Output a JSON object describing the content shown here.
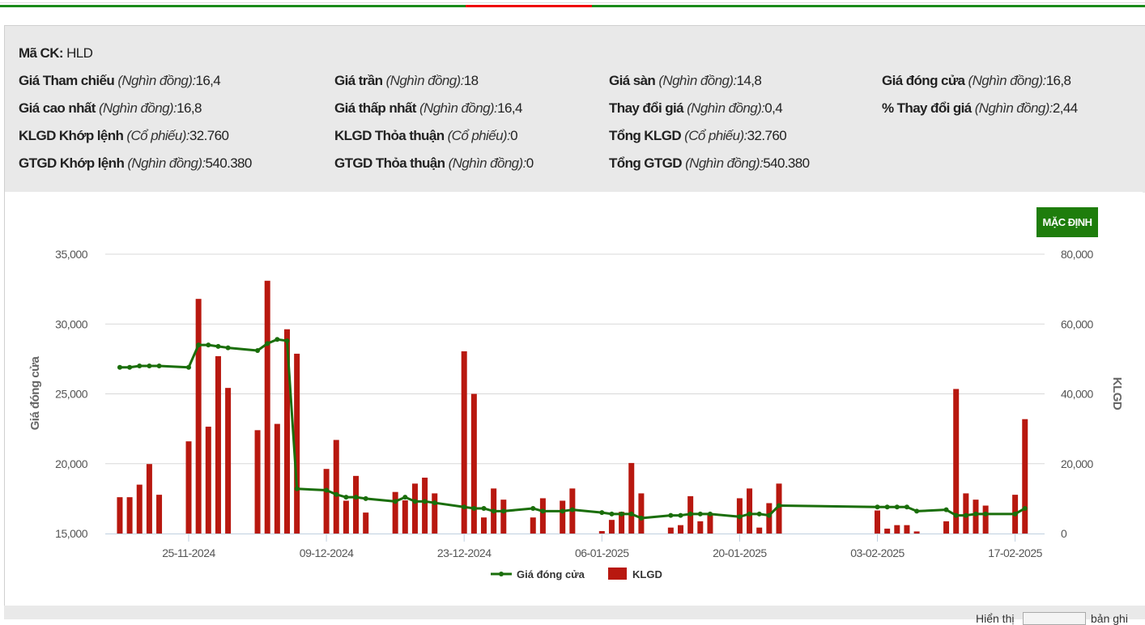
{
  "header": {
    "ma_ck": {
      "label": "Mã CK:",
      "value": "HLD"
    },
    "fields": [
      {
        "label": "Giá Tham chiếu",
        "unit": "(Nghìn đồng):",
        "value": "16,4"
      },
      {
        "label": "Giá trần",
        "unit": "(Nghìn đồng):",
        "value": "18"
      },
      {
        "label": "Giá sàn",
        "unit": "(Nghìn đồng):",
        "value": "14,8"
      },
      {
        "label": "Giá đóng cửa",
        "unit": "(Nghìn đồng):",
        "value": "16,8"
      },
      {
        "label": "Giá cao nhất",
        "unit": "(Nghìn đồng):",
        "value": "16,8"
      },
      {
        "label": "Giá thấp nhất",
        "unit": "(Nghìn đồng):",
        "value": "16,4"
      },
      {
        "label": "Thay đổi giá",
        "unit": "(Nghìn đồng):",
        "value": "0,4"
      },
      {
        "label": "% Thay đổi giá",
        "unit": "(Nghìn đồng):",
        "value": "2,44"
      },
      {
        "label": "KLGD Khớp lệnh",
        "unit": "(Cổ phiếu):",
        "value": "32.760"
      },
      {
        "label": "KLGD Thỏa thuận",
        "unit": "(Cổ phiếu):",
        "value": "0"
      },
      {
        "label": "Tổng KLGD",
        "unit": "(Cổ phiếu):",
        "value": "32.760"
      },
      {
        "label": "GTGD Khớp lệnh",
        "unit": "(Nghìn đồng):",
        "value": "540.380"
      },
      {
        "label": "GTGD Thỏa thuận",
        "unit": "(Nghìn đồng):",
        "value": "0"
      },
      {
        "label": "Tổng GTGD",
        "unit": "(Nghìn đồng):",
        "value": "540.380"
      }
    ]
  },
  "reset_button": "MẶC ĐỊNH",
  "footer": {
    "show_label": "Hiển thị",
    "records_label": "bản ghi"
  },
  "colors": {
    "line": "#1a6e0a",
    "bar": "#b8180f",
    "button": "#1e7d0c"
  },
  "chart_data": {
    "type": "bar+line",
    "y_left": {
      "label": "Giá đóng cửa",
      "range": [
        15000,
        35000
      ],
      "ticks": [
        "15,000",
        "20,000",
        "25,000",
        "30,000",
        "35,000"
      ]
    },
    "y_right": {
      "label": "KLGD",
      "range": [
        0,
        80000
      ],
      "ticks": [
        "0",
        "20,000",
        "40,000",
        "60,000",
        "80,000"
      ]
    },
    "x_ticks": [
      "25-11-2024",
      "09-12-2024",
      "23-12-2024",
      "06-01-2025",
      "20-01-2025",
      "03-02-2025",
      "17-02-2025"
    ],
    "grid": true,
    "legend": {
      "placement": "bottom",
      "items": [
        "Giá đóng cửa",
        "KLGD"
      ]
    },
    "dates": [
      "2024-11-18",
      "2024-11-19",
      "2024-11-20",
      "2024-11-21",
      "2024-11-22",
      "2024-11-25",
      "2024-11-26",
      "2024-11-27",
      "2024-11-28",
      "2024-11-29",
      "2024-12-02",
      "2024-12-03",
      "2024-12-04",
      "2024-12-05",
      "2024-12-06",
      "2024-12-09",
      "2024-12-10",
      "2024-12-11",
      "2024-12-12",
      "2024-12-13",
      "2024-12-16",
      "2024-12-17",
      "2024-12-18",
      "2024-12-19",
      "2024-12-20",
      "2024-12-23",
      "2024-12-24",
      "2024-12-25",
      "2024-12-26",
      "2024-12-27",
      "2024-12-30",
      "2024-12-31",
      "2025-01-02",
      "2025-01-03",
      "2025-01-06",
      "2025-01-07",
      "2025-01-08",
      "2025-01-09",
      "2025-01-10",
      "2025-01-13",
      "2025-01-14",
      "2025-01-15",
      "2025-01-16",
      "2025-01-17",
      "2025-01-20",
      "2025-01-21",
      "2025-01-22",
      "2025-01-23",
      "2025-01-24",
      "2025-02-03",
      "2025-02-04",
      "2025-02-05",
      "2025-02-06",
      "2025-02-07",
      "2025-02-10",
      "2025-02-11",
      "2025-02-12",
      "2025-02-13",
      "2025-02-14",
      "2025-02-17",
      "2025-02-18"
    ],
    "series": [
      {
        "name": "Giá đóng cửa",
        "type": "line",
        "axis": "left",
        "values": [
          26900,
          26900,
          27000,
          27000,
          27000,
          26900,
          28500,
          28500,
          28400,
          28300,
          28100,
          28600,
          28900,
          28800,
          18200,
          18100,
          17800,
          17600,
          17600,
          17500,
          17300,
          17600,
          17300,
          17300,
          17200,
          16900,
          16800,
          16800,
          16600,
          16600,
          16800,
          16600,
          16600,
          16700,
          16500,
          16400,
          16400,
          16400,
          16100,
          16300,
          16300,
          16400,
          16400,
          16400,
          16200,
          16400,
          16400,
          16300,
          17000,
          16900,
          16900,
          16900,
          16900,
          16600,
          16700,
          16300,
          16300,
          16400,
          16400,
          16400,
          16800
        ]
      },
      {
        "name": "KLGD",
        "type": "bar",
        "axis": "right",
        "values": [
          10400,
          10400,
          14000,
          19900,
          11100,
          26400,
          67200,
          30600,
          50800,
          41700,
          29600,
          72400,
          31400,
          58500,
          51500,
          18500,
          26800,
          9400,
          16500,
          6000,
          11900,
          9500,
          14300,
          16000,
          11500,
          52200,
          40000,
          4600,
          12900,
          9700,
          4600,
          10100,
          9400,
          12900,
          700,
          3900,
          6200,
          20200,
          11500,
          1700,
          2400,
          10700,
          3500,
          5300,
          10100,
          12900,
          1700,
          8700,
          14300,
          6600,
          1400,
          2400,
          2400,
          600,
          3500,
          41400,
          11500,
          9700,
          8000,
          11100,
          32760
        ]
      }
    ]
  }
}
